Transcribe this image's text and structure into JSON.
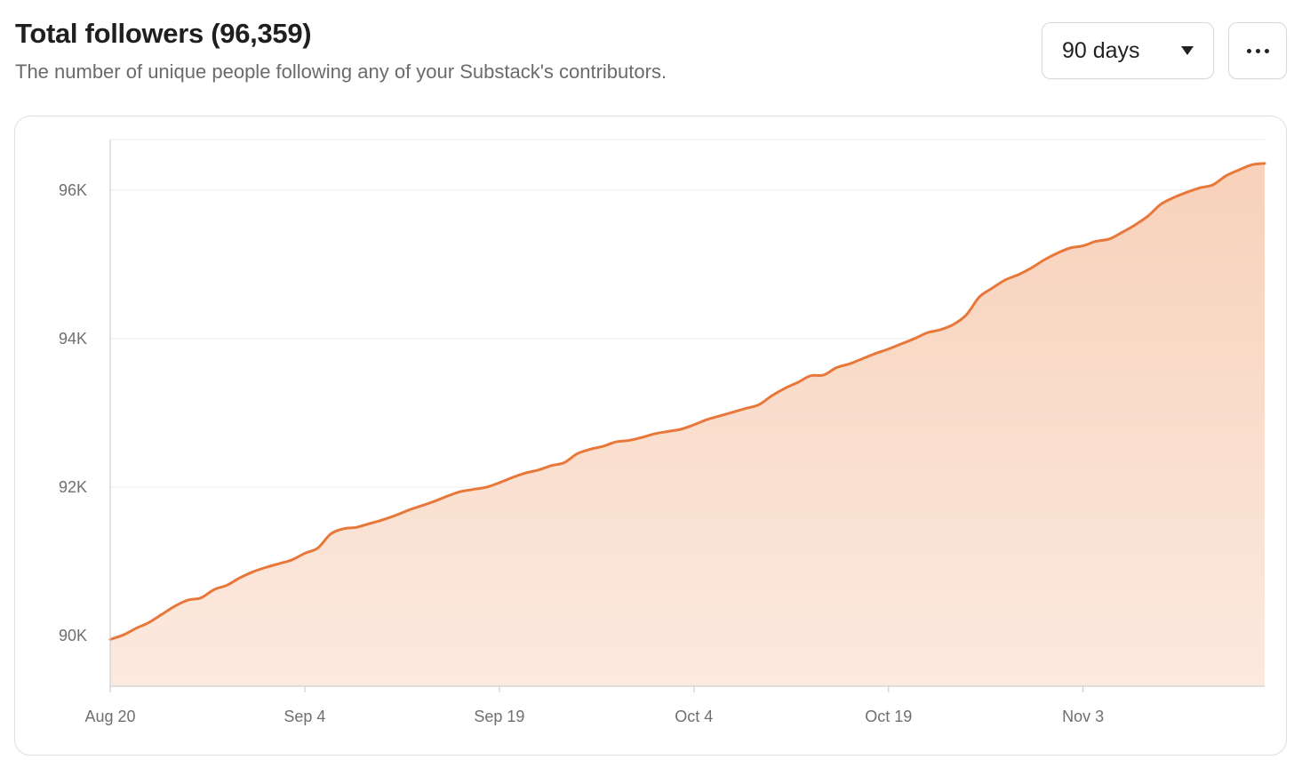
{
  "header": {
    "title": "Total followers (96,359)",
    "subtitle": "The number of unique people following any of your Substack's contributors."
  },
  "controls": {
    "range_label": "90 days",
    "range_icon": "caret-down-icon",
    "more_icon": "more-horizontal-icon"
  },
  "colors": {
    "line": "#e8773a",
    "fill_top": "#f6c9ad",
    "fill_bottom": "#fbe6da",
    "grid": "#ececec",
    "axis": "#cfcfcf"
  },
  "chart_data": {
    "type": "area",
    "y_ticks": [
      {
        "label": "90K",
        "value": 90000
      },
      {
        "label": "92K",
        "value": 92000
      },
      {
        "label": "94K",
        "value": 94000
      },
      {
        "label": "96K",
        "value": 96000
      }
    ],
    "x_ticks": [
      {
        "label": "Aug 20",
        "day": 0
      },
      {
        "label": "Sep 4",
        "day": 15
      },
      {
        "label": "Sep 19",
        "day": 30
      },
      {
        "label": "Oct 4",
        "day": 45
      },
      {
        "label": "Oct 19",
        "day": 60
      },
      {
        "label": "Nov 3",
        "day": 75
      }
    ],
    "ylim": [
      89320,
      96680
    ],
    "xlim_days": [
      0,
      89
    ],
    "grid": "horizontal",
    "legend": "none",
    "series": [
      {
        "values": [
          [
            0,
            89950
          ],
          [
            1,
            90010
          ],
          [
            2,
            90100
          ],
          [
            3,
            90180
          ],
          [
            4,
            90290
          ],
          [
            5,
            90400
          ],
          [
            6,
            90480
          ],
          [
            7,
            90510
          ],
          [
            8,
            90620
          ],
          [
            9,
            90680
          ],
          [
            10,
            90780
          ],
          [
            11,
            90860
          ],
          [
            12,
            90920
          ],
          [
            13,
            90970
          ],
          [
            14,
            91020
          ],
          [
            15,
            91110
          ],
          [
            16,
            91180
          ],
          [
            17,
            91370
          ],
          [
            18,
            91440
          ],
          [
            19,
            91460
          ],
          [
            20,
            91510
          ],
          [
            21,
            91560
          ],
          [
            22,
            91620
          ],
          [
            23,
            91690
          ],
          [
            24,
            91750
          ],
          [
            25,
            91810
          ],
          [
            26,
            91880
          ],
          [
            27,
            91940
          ],
          [
            28,
            91970
          ],
          [
            29,
            92000
          ],
          [
            30,
            92060
          ],
          [
            31,
            92130
          ],
          [
            32,
            92190
          ],
          [
            33,
            92230
          ],
          [
            34,
            92290
          ],
          [
            35,
            92330
          ],
          [
            36,
            92450
          ],
          [
            37,
            92510
          ],
          [
            38,
            92550
          ],
          [
            39,
            92610
          ],
          [
            40,
            92630
          ],
          [
            41,
            92670
          ],
          [
            42,
            92720
          ],
          [
            43,
            92750
          ],
          [
            44,
            92780
          ],
          [
            45,
            92840
          ],
          [
            46,
            92910
          ],
          [
            47,
            92960
          ],
          [
            48,
            93010
          ],
          [
            49,
            93060
          ],
          [
            50,
            93110
          ],
          [
            51,
            93230
          ],
          [
            52,
            93330
          ],
          [
            53,
            93410
          ],
          [
            54,
            93500
          ],
          [
            55,
            93510
          ],
          [
            56,
            93610
          ],
          [
            57,
            93660
          ],
          [
            58,
            93730
          ],
          [
            59,
            93800
          ],
          [
            60,
            93860
          ],
          [
            61,
            93930
          ],
          [
            62,
            94000
          ],
          [
            63,
            94080
          ],
          [
            64,
            94120
          ],
          [
            65,
            94190
          ],
          [
            66,
            94320
          ],
          [
            67,
            94560
          ],
          [
            68,
            94680
          ],
          [
            69,
            94790
          ],
          [
            70,
            94860
          ],
          [
            71,
            94950
          ],
          [
            72,
            95060
          ],
          [
            73,
            95150
          ],
          [
            74,
            95220
          ],
          [
            75,
            95250
          ],
          [
            76,
            95310
          ],
          [
            77,
            95340
          ],
          [
            78,
            95430
          ],
          [
            79,
            95530
          ],
          [
            80,
            95650
          ],
          [
            81,
            95810
          ],
          [
            82,
            95900
          ],
          [
            83,
            95970
          ],
          [
            84,
            96030
          ],
          [
            85,
            96070
          ],
          [
            86,
            96190
          ],
          [
            87,
            96270
          ],
          [
            88,
            96340
          ],
          [
            89,
            96359
          ]
        ]
      }
    ]
  }
}
